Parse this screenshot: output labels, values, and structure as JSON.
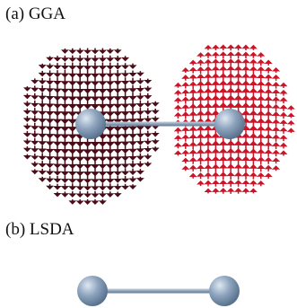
{
  "panels": [
    {
      "label": "(a) GGA"
    },
    {
      "label": "(b) LSDA"
    }
  ],
  "colors": {
    "spin_down": "#4a0d18",
    "spin_up": "#cc1428",
    "atom": "#8fa5bf",
    "atom_highlight": "#dfe8f2",
    "atom_shadow": "#4f6985",
    "bond": "#8ea2b8"
  },
  "legend": null
}
